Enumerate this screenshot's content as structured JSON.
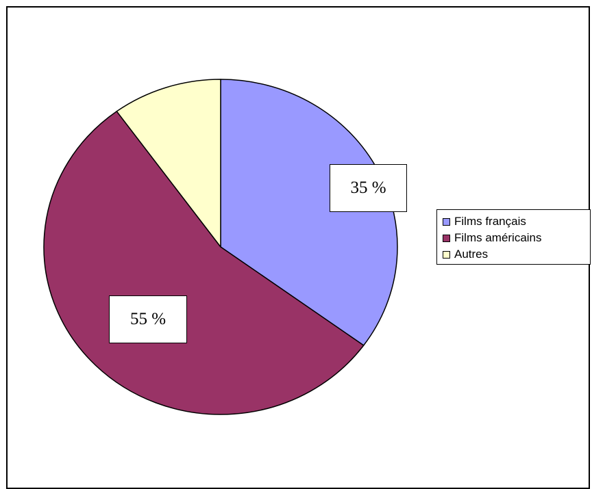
{
  "chart_data": {
    "type": "pie",
    "title": "",
    "slices": [
      {
        "label": "Films français",
        "value": 35,
        "data_label": "35 %",
        "color": "#9999FF"
      },
      {
        "label": "Films américains",
        "value": 55,
        "data_label": "55 %",
        "color": "#993366"
      },
      {
        "label": "Autres",
        "value": 10,
        "data_label": "",
        "color": "#FFFFCC"
      }
    ],
    "start_angle": "12 o'clock",
    "direction": "clockwise",
    "legend_position": "right"
  },
  "legend": {
    "items": [
      "Films français",
      "Films américains",
      "Autres"
    ]
  }
}
